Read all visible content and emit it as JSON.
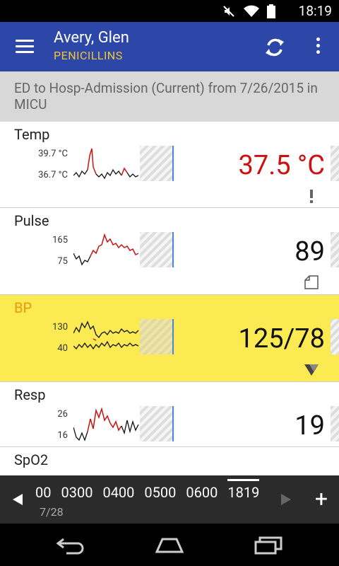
{
  "status_bar": {
    "time": "18:19",
    "icons": [
      "mute-icon",
      "wifi-icon",
      "battery-icon"
    ]
  },
  "header": {
    "patient_name": "Avery, Glen",
    "allergy": "PENICILLINS"
  },
  "encounter": {
    "text": "ED to Hosp-Admission (Current) from 7/26/2015 in MICU"
  },
  "vitals": [
    {
      "label": "Temp",
      "ymax": "39.7 °C",
      "ymin": "36.7 °C",
      "value": "37.5 °C",
      "alert": true,
      "flag": "exclamation-icon"
    },
    {
      "label": "Pulse",
      "ymax": "165",
      "ymin": "75",
      "value": "89",
      "alert": false,
      "flag": "corner-note-icon"
    },
    {
      "label": "BP",
      "ymax": "130",
      "ymin": "40",
      "value": "125/78",
      "alert": false,
      "flag": "triangle-flag-icon",
      "highlighted": true
    },
    {
      "label": "Resp",
      "ymax": "26",
      "ymin": "16",
      "value": "19",
      "alert": false
    },
    {
      "label": "SpO2"
    }
  ],
  "timeline": {
    "hours": [
      "00",
      "0300",
      "0400",
      "0500",
      "0600",
      "1819"
    ],
    "current_hour": "1819",
    "date": "7/28",
    "add_label": "+"
  },
  "colors": {
    "appbar": "#2c47a8",
    "allergy": "#f4c431",
    "alert": "#cc1111",
    "highlight": "#fbea52"
  }
}
